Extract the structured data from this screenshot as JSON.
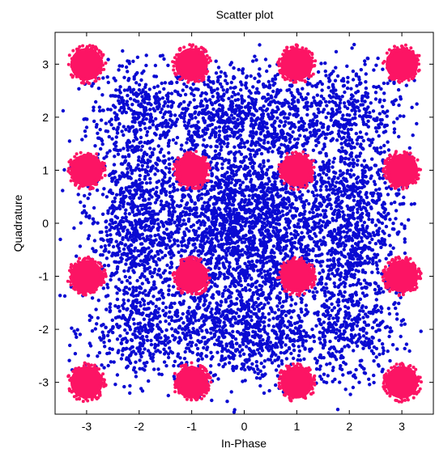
{
  "chart_data": {
    "type": "scatter",
    "title": "Scatter plot",
    "xlabel": "In-Phase",
    "ylabel": "Quadrature",
    "xlim": [
      -3.6,
      3.6
    ],
    "ylim": [
      -3.6,
      3.6
    ],
    "xticks": [
      -3,
      -2,
      -1,
      0,
      1,
      2,
      3
    ],
    "yticks": [
      -3,
      -2,
      -1,
      0,
      1,
      2,
      3
    ],
    "grid": false,
    "series": [
      {
        "role": "received-noise-cloud",
        "color": "#0a0ad2",
        "clusters": [
          [
            -2,
            2
          ],
          [
            -2,
            0.5
          ],
          [
            -2,
            -0.5
          ],
          [
            -2,
            -2
          ],
          [
            -0.5,
            2
          ],
          [
            0.5,
            2
          ],
          [
            -0.5,
            -2
          ],
          [
            0.5,
            -2
          ],
          [
            2,
            2
          ],
          [
            2,
            0.5
          ],
          [
            2,
            -0.5
          ],
          [
            2,
            -2
          ],
          [
            -0.5,
            0.5
          ],
          [
            0.5,
            0.5
          ],
          [
            -0.5,
            -0.5
          ],
          [
            0.5,
            -0.5
          ]
        ]
      },
      {
        "role": "constellation-points",
        "color": "#fc1464",
        "x": [
          -3,
          -1,
          1,
          3,
          -3,
          -1,
          1,
          3,
          -3,
          -1,
          1,
          3,
          -3,
          -1,
          1,
          3
        ],
        "y": [
          3,
          3,
          3,
          3,
          1,
          1,
          1,
          1,
          -1,
          -1,
          -1,
          -1,
          -3,
          -3,
          -3,
          -3
        ]
      }
    ]
  }
}
